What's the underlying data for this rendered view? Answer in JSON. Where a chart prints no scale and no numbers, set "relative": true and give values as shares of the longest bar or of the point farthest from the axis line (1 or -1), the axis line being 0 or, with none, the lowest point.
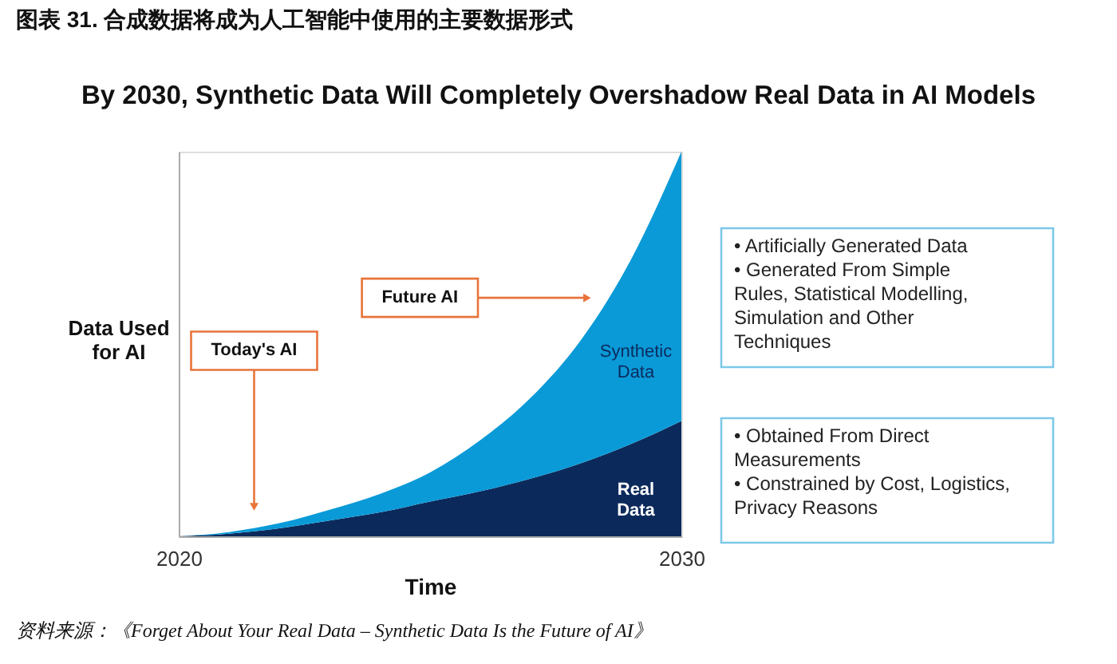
{
  "chart_data": {
    "type": "area",
    "title": "图表 31. 合成数据将成为人工智能中使用的主要数据形式",
    "subtitle": "By 2030, Synthetic Data Will Completely Overshadow Real Data in AI Models",
    "xlabel": "Time",
    "ylabel": "Data Used for AI",
    "x": [
      2020,
      2021,
      2022,
      2023,
      2024,
      2025,
      2026,
      2027,
      2028,
      2029,
      2030
    ],
    "xlim": [
      2020,
      2030
    ],
    "xticks": [
      2020,
      2030
    ],
    "relative": true,
    "stacked": true,
    "tick_labels": "x",
    "grid": false,
    "series": [
      {
        "name": "Real Data",
        "color": "#0b2a5b",
        "values": [
          0,
          0.007,
          0.021,
          0.041,
          0.062,
          0.09,
          0.117,
          0.15,
          0.19,
          0.24,
          0.3
        ]
      },
      {
        "name": "Synthetic Data",
        "color": "#0a9ad8",
        "values": [
          0,
          0.004,
          0.013,
          0.028,
          0.048,
          0.076,
          0.133,
          0.21,
          0.32,
          0.48,
          0.7
        ]
      }
    ],
    "annotations": [
      {
        "text": "Today's AI",
        "x": 2021.5,
        "y": 0.08
      },
      {
        "text": "Future AI",
        "x": 2028.1,
        "y": 0.62
      },
      "• Artificially Generated Data\n• Generated From Simple\n   Rules, Statistical Modelling,\n   Simulation and Other\n   Techniques",
      "• Obtained From Direct\n   Measurements\n• Constrained by Cost, Logistics,\n   Privacy Reasons",
      "资料来源：《Forget About Your Real Data – Synthetic Data Is the Future of AI》"
    ]
  }
}
